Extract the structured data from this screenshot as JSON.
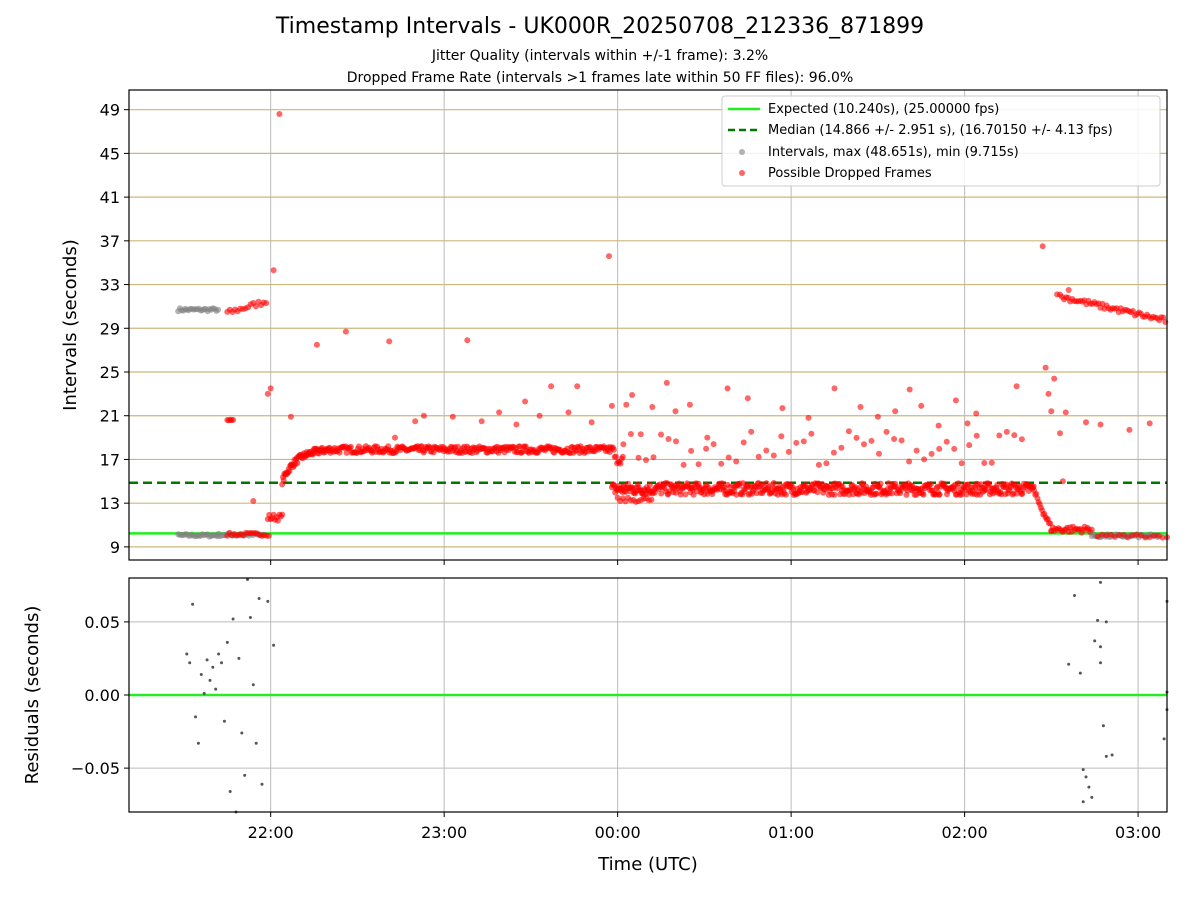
{
  "title": "Timestamp Intervals - UK000R_20250708_212336_871899",
  "subtitle_1": "Jitter Quality (intervals within +/-1 frame): 3.2%",
  "subtitle_2": "Dropped Frame Rate (intervals >1 frames late within 50 FF files): 96.0%",
  "colors": {
    "expected": "#22ee22",
    "median": "#007700",
    "intervals": "#808080",
    "dropped": "#ff0000",
    "grid": "#bbbbbb",
    "hgrid_top": "#cdb77a"
  },
  "chart_data": [
    {
      "type": "scatter",
      "panel": "top",
      "ylabel": "Intervals (seconds)",
      "ylim": [
        7.8,
        50.8
      ],
      "yticks": [
        "9",
        "13",
        "17",
        "21",
        "25",
        "29",
        "33",
        "37",
        "41",
        "45",
        "49"
      ],
      "xlim": [
        "21:11",
        "03:10"
      ],
      "expected": 10.24,
      "median": 14.866,
      "legend": [
        "Expected (10.240s), (25.00000 fps)",
        "Median (14.866 +/- 2.951 s), (16.70150 +/- 4.13 fps)",
        "Intervals, max (48.651s), min (9.715s)",
        "Possible Dropped Frames"
      ],
      "legend_position": "upper right",
      "outliers": [
        {
          "t": "21:54",
          "v": 13.2
        },
        {
          "t": "21:59",
          "v": 23.0
        },
        {
          "t": "22:00",
          "v": 23.5
        },
        {
          "t": "22:01",
          "v": 34.3
        },
        {
          "t": "22:03",
          "v": 48.6
        },
        {
          "t": "22:07",
          "v": 20.9
        },
        {
          "t": "22:16",
          "v": 27.5
        },
        {
          "t": "22:26",
          "v": 28.7
        },
        {
          "t": "22:41",
          "v": 27.8
        },
        {
          "t": "22:43",
          "v": 19.0
        },
        {
          "t": "22:50",
          "v": 20.5
        },
        {
          "t": "22:53",
          "v": 21.0
        },
        {
          "t": "23:03",
          "v": 20.9
        },
        {
          "t": "23:08",
          "v": 27.9
        },
        {
          "t": "23:13",
          "v": 20.5
        },
        {
          "t": "23:19",
          "v": 21.3
        },
        {
          "t": "23:25",
          "v": 20.2
        },
        {
          "t": "23:28",
          "v": 22.3
        },
        {
          "t": "23:33",
          "v": 21.0
        },
        {
          "t": "23:37",
          "v": 23.7
        },
        {
          "t": "23:43",
          "v": 21.3
        },
        {
          "t": "23:46",
          "v": 23.7
        },
        {
          "t": "23:51",
          "v": 20.4
        },
        {
          "t": "23:57",
          "v": 35.6
        },
        {
          "t": "23:58",
          "v": 21.9
        },
        {
          "t": "00:03",
          "v": 22.0
        },
        {
          "t": "00:05",
          "v": 22.9
        },
        {
          "t": "00:08",
          "v": 19.3
        },
        {
          "t": "00:12",
          "v": 21.8
        },
        {
          "t": "00:17",
          "v": 24.0
        },
        {
          "t": "00:20",
          "v": 21.4
        },
        {
          "t": "00:25",
          "v": 22.0
        },
        {
          "t": "00:31",
          "v": 19.0
        },
        {
          "t": "00:38",
          "v": 23.5
        },
        {
          "t": "00:45",
          "v": 22.6
        },
        {
          "t": "00:57",
          "v": 21.7
        },
        {
          "t": "01:06",
          "v": 20.8
        },
        {
          "t": "01:15",
          "v": 23.5
        },
        {
          "t": "01:24",
          "v": 21.8
        },
        {
          "t": "01:30",
          "v": 20.9
        },
        {
          "t": "01:36",
          "v": 21.4
        },
        {
          "t": "01:41",
          "v": 23.4
        },
        {
          "t": "01:45",
          "v": 21.9
        },
        {
          "t": "01:51",
          "v": 20.1
        },
        {
          "t": "01:57",
          "v": 22.4
        },
        {
          "t": "02:01",
          "v": 20.3
        },
        {
          "t": "02:04",
          "v": 21.2
        },
        {
          "t": "02:18",
          "v": 23.7
        },
        {
          "t": "02:27",
          "v": 36.5
        },
        {
          "t": "02:28",
          "v": 25.4
        },
        {
          "t": "02:29",
          "v": 23.0
        },
        {
          "t": "02:30",
          "v": 21.4
        },
        {
          "t": "02:31",
          "v": 24.4
        },
        {
          "t": "02:32",
          "v": 32.1
        },
        {
          "t": "02:33",
          "v": 19.4
        },
        {
          "t": "02:34",
          "v": 15.0
        },
        {
          "t": "02:35",
          "v": 21.3
        },
        {
          "t": "02:36",
          "v": 32.5
        },
        {
          "t": "02:42",
          "v": 20.4
        },
        {
          "t": "02:47",
          "v": 20.2
        },
        {
          "t": "02:57",
          "v": 19.7
        },
        {
          "t": "03:04",
          "v": 20.3
        }
      ]
    },
    {
      "type": "scatter",
      "panel": "bottom",
      "xlabel": "Time (UTC)",
      "ylabel": "Residuals (seconds)",
      "ylim": [
        -0.08,
        0.08
      ],
      "yticks": [
        "−0.05",
        "0.00",
        "0.05"
      ],
      "xticks": [
        "22:00",
        "23:00",
        "00:00",
        "01:00",
        "02:00",
        "03:00"
      ],
      "points": [
        {
          "t": "21:31",
          "v": 0.028
        },
        {
          "t": "21:32",
          "v": 0.022
        },
        {
          "t": "21:33",
          "v": 0.062
        },
        {
          "t": "21:34",
          "v": -0.015
        },
        {
          "t": "21:35",
          "v": -0.033
        },
        {
          "t": "21:36",
          "v": 0.014
        },
        {
          "t": "21:37",
          "v": 0.001
        },
        {
          "t": "21:38",
          "v": 0.024
        },
        {
          "t": "21:39",
          "v": 0.01
        },
        {
          "t": "21:40",
          "v": 0.019
        },
        {
          "t": "21:41",
          "v": 0.004
        },
        {
          "t": "21:42",
          "v": 0.028
        },
        {
          "t": "21:43",
          "v": 0.022
        },
        {
          "t": "21:44",
          "v": -0.018
        },
        {
          "t": "21:45",
          "v": 0.036
        },
        {
          "t": "21:46",
          "v": -0.066
        },
        {
          "t": "21:47",
          "v": 0.052
        },
        {
          "t": "21:48",
          "v": -0.08
        },
        {
          "t": "21:49",
          "v": 0.025
        },
        {
          "t": "21:50",
          "v": -0.026
        },
        {
          "t": "21:51",
          "v": -0.055
        },
        {
          "t": "21:52",
          "v": 0.079
        },
        {
          "t": "21:53",
          "v": 0.053
        },
        {
          "t": "21:54",
          "v": 0.007
        },
        {
          "t": "21:55",
          "v": -0.033
        },
        {
          "t": "21:56",
          "v": 0.066
        },
        {
          "t": "21:57",
          "v": -0.061
        },
        {
          "t": "21:59",
          "v": 0.064
        },
        {
          "t": "22:01",
          "v": 0.034
        },
        {
          "t": "02:36",
          "v": 0.021
        },
        {
          "t": "02:38",
          "v": 0.068
        },
        {
          "t": "02:40",
          "v": 0.015
        },
        {
          "t": "02:41",
          "v": -0.073
        },
        {
          "t": "02:41",
          "v": -0.051
        },
        {
          "t": "02:42",
          "v": -0.056
        },
        {
          "t": "02:43",
          "v": -0.063
        },
        {
          "t": "02:44",
          "v": -0.07
        },
        {
          "t": "02:45",
          "v": 0.037
        },
        {
          "t": "02:46",
          "v": 0.051
        },
        {
          "t": "02:47",
          "v": 0.033
        },
        {
          "t": "02:47",
          "v": 0.077
        },
        {
          "t": "02:47",
          "v": 0.022
        },
        {
          "t": "02:48",
          "v": -0.021
        },
        {
          "t": "02:49",
          "v": 0.05
        },
        {
          "t": "02:49",
          "v": -0.042
        },
        {
          "t": "02:51",
          "v": -0.041
        },
        {
          "t": "03:09",
          "v": -0.03
        },
        {
          "t": "03:10",
          "v": -0.01
        },
        {
          "t": "03:10",
          "v": 0.064
        },
        {
          "t": "03:10",
          "v": 0.002
        }
      ]
    }
  ]
}
